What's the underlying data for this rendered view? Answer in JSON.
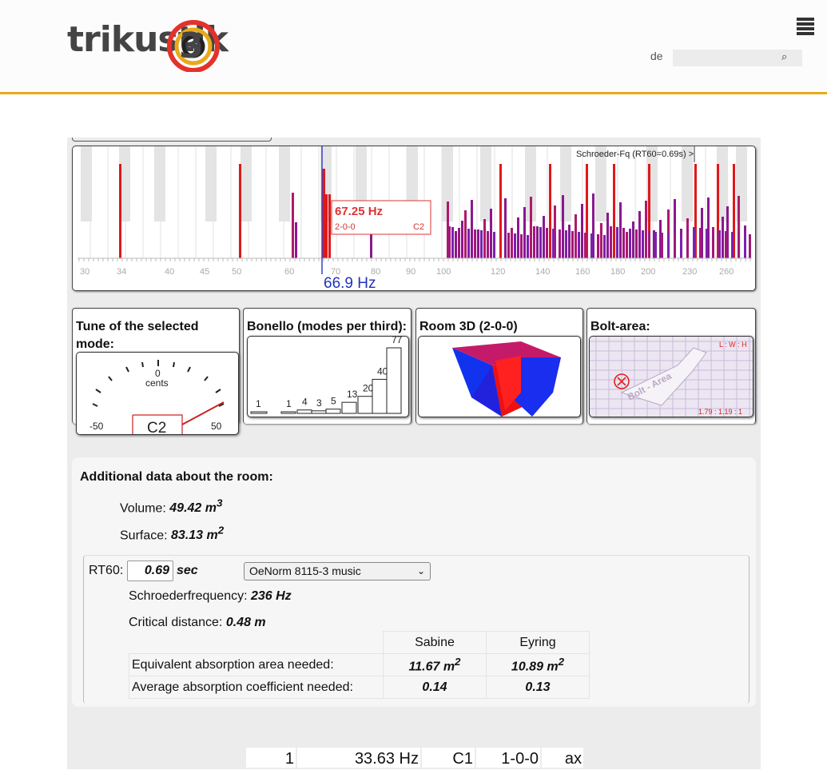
{
  "header": {
    "logo_text": "trikustik",
    "lang": "de",
    "search_placeholder": "",
    "accent": "#e8a91a"
  },
  "spectrum": {
    "schroeder_label": "Schroeder-Fq (RT60=0.69s) >",
    "tooltip_freq": "67.25 Hz",
    "tooltip_mode": "2-0-0",
    "tooltip_note": "C2",
    "cursor_label": "66.9 Hz",
    "ticks": [
      "30",
      "34",
      "40",
      "45",
      "50",
      "60",
      "70",
      "80",
      "90",
      "100",
      "120",
      "140",
      "160",
      "180",
      "200",
      "230",
      "260"
    ]
  },
  "panels": {
    "tune": {
      "title": "Tune of the selected mode:",
      "center_label": "0",
      "cents_label": "cents",
      "min_label": "-50",
      "max_label": "50",
      "note": "C2"
    },
    "bonello": {
      "title": "Bonello (modes per third):",
      "counts": [
        1,
        1,
        4,
        3,
        5,
        13,
        20,
        40,
        77
      ],
      "count_labels": [
        "1",
        "1",
        "4",
        "3",
        "5",
        "13",
        "20",
        "40",
        "77"
      ]
    },
    "room3d": {
      "title": "Room 3D (2-0-0)"
    },
    "bolt": {
      "title": "Bolt-area:",
      "lwh_label": "L : W : H",
      "ratio_label": "1.79 : 1.19 : 1",
      "watermark": "Bolt - Area"
    }
  },
  "additional": {
    "title": "Additional data about the room:",
    "volume_label": "Volume: ",
    "volume_value": "49.42 m",
    "volume_sup": "3",
    "surface_label": "Surface: ",
    "surface_value": "83.13 m",
    "surface_sup": "2",
    "rt60_label": "RT60:",
    "rt60_value": "0.69",
    "rt60_unit": "sec",
    "norm_selected": "OeNorm 8115-3 music",
    "schroeder_label": "Schroederfrequency: ",
    "schroeder_value": "236 Hz",
    "critical_label": "Critical distance: ",
    "critical_value": "0.48 m",
    "table": {
      "headers": [
        "Sabine",
        "Eyring"
      ],
      "rows": [
        {
          "label": "Equivalent absorption area needed:",
          "sabine": "11.67 m",
          "sabine_sup": "2",
          "eyring": "10.89 m",
          "eyring_sup": "2"
        },
        {
          "label": "Average absorption coefficient needed:",
          "sabine": "0.14",
          "eyring": "0.13"
        }
      ]
    }
  },
  "mode_row": {
    "index": "1",
    "freq": "33.63 Hz",
    "note": "C1",
    "mode": "1-0-0",
    "type": "ax"
  }
}
